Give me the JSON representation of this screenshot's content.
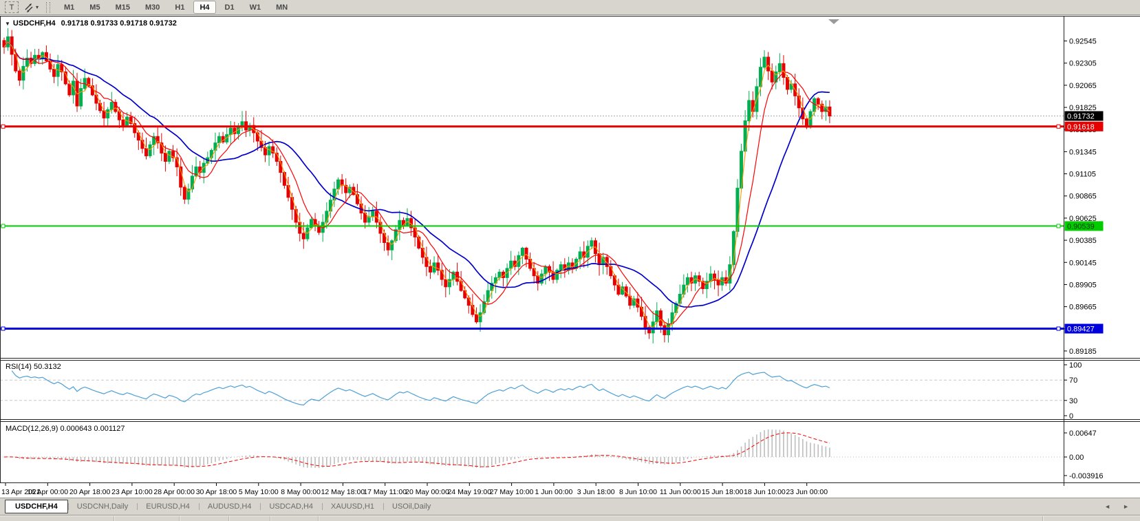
{
  "icons": {
    "text_tool": "T",
    "dropdown": "▾",
    "collapse": "▼",
    "tab_scroll_left": "◄",
    "tab_scroll_right": "►"
  },
  "toolbar": {
    "timeframes": [
      "M1",
      "M5",
      "M15",
      "M30",
      "H1",
      "H4",
      "D1",
      "W1",
      "MN"
    ],
    "active_timeframe": "H4"
  },
  "chart": {
    "title": "USDCHF,H4",
    "ohlc": "0.91718 0.91733 0.91718 0.91732",
    "price_axis": {
      "ticks": [
        "0.92545",
        "0.92305",
        "0.92065",
        "0.91825",
        "0.91585",
        "0.91345",
        "0.91105",
        "0.90865",
        "0.90625",
        "0.90385",
        "0.90145",
        "0.89905",
        "0.89665",
        "0.89425",
        "0.89185"
      ],
      "badges": [
        {
          "text": "0.91732",
          "price": 0.91732,
          "bg": "#000000",
          "fg": "#ffffff"
        },
        {
          "text": "0.91618",
          "price": 0.91618,
          "bg": "#e60000",
          "fg": "#ffffff"
        },
        {
          "text": "0.90539",
          "price": 0.90539,
          "bg": "#00cc00",
          "fg": "#003300"
        },
        {
          "text": "0.89427",
          "price": 0.89427,
          "bg": "#0000dd",
          "fg": "#ffffff"
        }
      ]
    },
    "time_axis": {
      "labels": [
        "13 Apr 2021",
        "16 Apr 00:00",
        "20 Apr 18:00",
        "23 Apr 10:00",
        "28 Apr 00:00",
        "30 Apr 18:00",
        "5 May 10:00",
        "8 May 00:00",
        "12 May 18:00",
        "17 May 11:00",
        "20 May 00:00",
        "24 May 19:00",
        "27 May 10:00",
        "1 Jun 00:00",
        "3 Jun 18:00",
        "8 Jun 10:00",
        "11 Jun 00:00",
        "15 Jun 18:00",
        "18 Jun 10:00",
        "23 Jun 00:00"
      ]
    }
  },
  "rsi": {
    "label": "RSI(14) 50.3132",
    "ticks": [
      "100",
      "70",
      "30",
      "0"
    ]
  },
  "macd": {
    "label": "MACD(12,26,9) 0.000643 0.001127",
    "ticks": [
      "0.00647",
      "0.00",
      "-0.003916"
    ]
  },
  "tabs": {
    "items": [
      {
        "label": "USDCHF,H4",
        "active": true
      },
      {
        "label": "USDCNH,Daily",
        "active": false
      },
      {
        "label": "EURUSD,H4",
        "active": false
      },
      {
        "label": "AUDUSD,H4",
        "active": false
      },
      {
        "label": "USDCAD,H4",
        "active": false
      },
      {
        "label": "XAUUSD,H1",
        "active": false
      },
      {
        "label": "USOil,Daily",
        "active": false
      }
    ]
  },
  "colors": {
    "bull": "#00b050",
    "bear": "#e60000",
    "ma_fast": "#ff9900",
    "ma_mid": "#ff0000",
    "ma_slow": "#0000cc",
    "rsi_line": "#4da0d8",
    "rsi_level": "#c8c8c8",
    "macd_hist": "#bdbdbd",
    "macd_signal": "#ff0000",
    "current_line": "#a8a8a8"
  },
  "chart_data": {
    "type": "candlestick",
    "symbol": "USDCHF",
    "timeframe": "H4",
    "last_ohlc": {
      "open": 0.91718,
      "high": 0.91733,
      "low": 0.91718,
      "close": 0.91732
    },
    "price_range": [
      0.8911,
      0.9281
    ],
    "current_price": 0.91732,
    "hlines": [
      {
        "price": 0.91618,
        "color": "#e60000",
        "width": 3
      },
      {
        "price": 0.90539,
        "color": "#00cc00",
        "width": 2
      },
      {
        "price": 0.89427,
        "color": "#0000dd",
        "width": 3
      }
    ],
    "moving_averages": [
      {
        "period": 3,
        "color": "#ff9900",
        "width": 1.1
      },
      {
        "period": 8,
        "color": "#ff0000",
        "width": 1.2
      },
      {
        "period": 20,
        "color": "#0000cc",
        "width": 1.7
      }
    ],
    "rsi": {
      "period": 14,
      "last": 50.3132,
      "levels": [
        70,
        30
      ],
      "range": [
        0,
        100
      ]
    },
    "macd": {
      "fast": 12,
      "slow": 26,
      "signal": 9,
      "values": [
        0.000643,
        0.001127
      ]
    },
    "closes": [
      0.9248,
      0.9259,
      0.924,
      0.9222,
      0.9212,
      0.9227,
      0.9236,
      0.923,
      0.9239,
      0.9235,
      0.9242,
      0.9233,
      0.9224,
      0.9216,
      0.9229,
      0.9221,
      0.9208,
      0.9196,
      0.9211,
      0.9184,
      0.9203,
      0.9214,
      0.9206,
      0.9196,
      0.9187,
      0.9179,
      0.9171,
      0.918,
      0.9188,
      0.9178,
      0.9169,
      0.9163,
      0.9172,
      0.9165,
      0.9155,
      0.9147,
      0.9138,
      0.913,
      0.9142,
      0.9151,
      0.9144,
      0.9133,
      0.9124,
      0.9135,
      0.9128,
      0.9118,
      0.9096,
      0.9083,
      0.9094,
      0.9108,
      0.9118,
      0.9112,
      0.9122,
      0.9128,
      0.9136,
      0.9144,
      0.9151,
      0.9145,
      0.9153,
      0.916,
      0.9154,
      0.9161,
      0.9167,
      0.9158,
      0.9163,
      0.9155,
      0.9146,
      0.9139,
      0.9131,
      0.914,
      0.9133,
      0.9124,
      0.9112,
      0.9098,
      0.9085,
      0.9072,
      0.9058,
      0.9046,
      0.904,
      0.9052,
      0.9061,
      0.9054,
      0.9047,
      0.9058,
      0.907,
      0.9082,
      0.9094,
      0.9104,
      0.9098,
      0.909,
      0.9096,
      0.9088,
      0.9078,
      0.9068,
      0.9058,
      0.9064,
      0.907,
      0.9058,
      0.9046,
      0.9036,
      0.9028,
      0.9038,
      0.905,
      0.906,
      0.9055,
      0.9062,
      0.9052,
      0.9042,
      0.903,
      0.902,
      0.901,
      0.9004,
      0.9014,
      0.9006,
      0.8996,
      0.8988,
      0.8996,
      0.9004,
      0.8994,
      0.8984,
      0.8976,
      0.8968,
      0.8958,
      0.895,
      0.896,
      0.8972,
      0.8984,
      0.8992,
      0.8998,
      0.9004,
      0.8998,
      0.9008,
      0.9016,
      0.901,
      0.9022,
      0.903,
      0.9018,
      0.9008,
      0.9,
      0.8992,
      0.9002,
      0.901,
      0.9004,
      0.8996,
      0.9006,
      0.9012,
      0.9006,
      0.9014,
      0.9008,
      0.9018,
      0.9026,
      0.902,
      0.9032,
      0.9038,
      0.9024,
      0.9012,
      0.902,
      0.901,
      0.9,
      0.899,
      0.898,
      0.8988,
      0.8978,
      0.8968,
      0.8975,
      0.8966,
      0.8956,
      0.8944,
      0.8938,
      0.895,
      0.8962,
      0.8946,
      0.8936,
      0.8948,
      0.896,
      0.897,
      0.898,
      0.899,
      0.8998,
      0.8992,
      0.9,
      0.8994,
      0.8986,
      0.8994,
      0.9002,
      0.8996,
      0.899,
      0.8998,
      0.8992,
      0.9012,
      0.9048,
      0.9095,
      0.9135,
      0.9168,
      0.919,
      0.9178,
      0.9205,
      0.9226,
      0.9237,
      0.9222,
      0.921,
      0.9221,
      0.923,
      0.9215,
      0.9202,
      0.9208,
      0.9195,
      0.9182,
      0.917,
      0.9161,
      0.9178,
      0.9192,
      0.9186,
      0.9178,
      0.9183,
      0.91732
    ]
  }
}
